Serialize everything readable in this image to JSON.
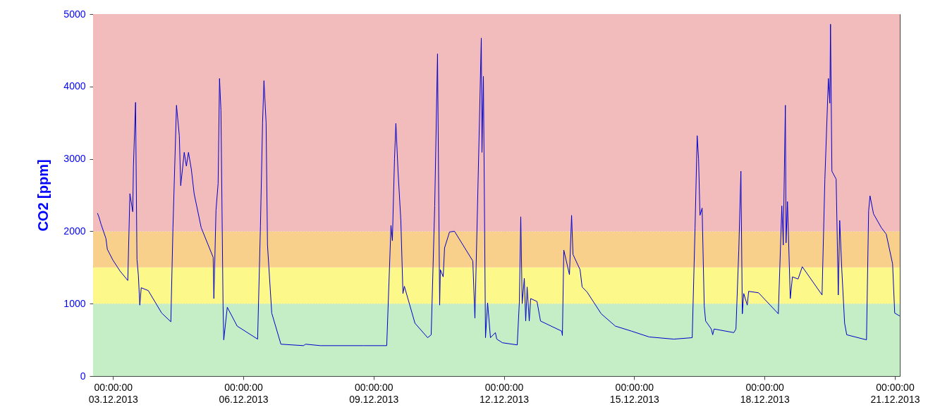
{
  "chart_data": {
    "type": "line",
    "ylabel": "CO2 [ppm]",
    "x": [
      "2013-12-02T15:25",
      "2013-12-02T16:12",
      "2013-12-02T17:22",
      "2013-12-02T20:06",
      "2013-12-02T20:53",
      "2013-12-03T00:00",
      "2013-12-03T03:54",
      "2013-12-03T08:11",
      "2013-12-03T09:21",
      "2013-12-03T10:55",
      "2013-12-03T11:18",
      "2013-12-03T12:28",
      "2013-12-03T13:15",
      "2013-12-03T14:02",
      "2013-12-03T14:49",
      "2013-12-03T15:36",
      "2013-12-03T19:30",
      "2013-12-04T02:54",
      "2013-12-04T07:58",
      "2013-12-04T09:08",
      "2013-12-04T11:05",
      "2013-12-04T12:39",
      "2013-12-04T13:25",
      "2013-12-04T15:22",
      "2013-12-04T16:33",
      "2013-12-04T17:43",
      "2013-12-04T19:16",
      "2013-12-04T20:50",
      "2013-12-05T00:44",
      "2013-12-05T07:21",
      "2013-12-05T07:45",
      "2013-12-05T08:55",
      "2013-12-05T10:05",
      "2013-12-05T10:52",
      "2013-12-05T11:39",
      "2013-12-05T12:49",
      "2013-12-05T13:12",
      "2013-12-05T15:09",
      "2013-12-05T20:37",
      "2013-12-06T07:55",
      "2013-12-06T09:29",
      "2013-12-06T10:39",
      "2013-12-06T11:25",
      "2013-12-06T12:36",
      "2013-12-06T13:22",
      "2013-12-06T15:43",
      "2013-12-06T20:47",
      "2013-12-07T09:15",
      "2013-12-07T10:25",
      "2013-12-07T18:37",
      "2013-12-08T18:23",
      "2013-12-09T07:15",
      "2013-12-09T09:36",
      "2013-12-09T10:22",
      "2013-12-09T11:33",
      "2013-12-09T12:19",
      "2013-12-09T13:30",
      "2013-12-09T15:03",
      "2013-12-09T16:13",
      "2013-12-09T17:00",
      "2013-12-09T22:51",
      "2013-12-10T05:52",
      "2013-12-10T07:49",
      "2013-12-10T09:46",
      "2013-12-10T11:19",
      "2013-12-10T12:30",
      "2013-12-10T12:53",
      "2013-12-10T14:27",
      "2013-12-10T15:13",
      "2013-12-10T17:57",
      "2013-12-10T20:41",
      "2013-12-11T06:49",
      "2013-12-11T07:59",
      "2013-12-11T09:33",
      "2013-12-11T11:30",
      "2013-12-11T11:53",
      "2013-12-11T12:40",
      "2013-12-11T13:50",
      "2013-12-11T15:00",
      "2013-12-11T16:34",
      "2013-12-11T19:17",
      "2013-12-11T20:04",
      "2013-12-11T23:11",
      "2013-12-12T07:22",
      "2013-12-12T08:33",
      "2013-12-12T09:19",
      "2013-12-12T10:06",
      "2013-12-12T11:16",
      "2013-12-12T12:03",
      "2013-12-12T12:50",
      "2013-12-12T14:00",
      "2013-12-12T14:47",
      "2013-12-12T18:17",
      "2013-12-12T20:14",
      "2013-12-13T07:56",
      "2013-12-13T08:19",
      "2013-12-13T09:06",
      "2013-12-13T12:13",
      "2013-12-13T13:24",
      "2013-12-13T14:10",
      "2013-12-13T18:04",
      "2013-12-13T19:14",
      "2013-12-13T21:58",
      "2013-12-14T05:46",
      "2013-12-14T13:34",
      "2013-12-14T22:32",
      "2013-12-15T08:16",
      "2013-12-15T21:55",
      "2013-12-16T08:03",
      "2013-12-16T09:37",
      "2013-12-16T10:47",
      "2013-12-16T11:34",
      "2013-12-16T12:20",
      "2013-12-16T13:31",
      "2013-12-16T14:41",
      "2013-12-16T15:28",
      "2013-12-16T18:35",
      "2013-12-16T19:22",
      "2013-12-16T20:08",
      "2013-12-17T07:03",
      "2013-12-17T08:13",
      "2013-12-17T09:47",
      "2013-12-17T10:57",
      "2013-12-17T11:44",
      "2013-12-17T12:31",
      "2013-12-17T14:28",
      "2013-12-17T15:14",
      "2013-12-17T20:42",
      "2013-12-18T07:37",
      "2013-12-18T09:34",
      "2013-12-18T10:21",
      "2013-12-18T11:31",
      "2013-12-18T11:54",
      "2013-12-18T12:41",
      "2013-12-18T14:14",
      "2013-12-18T15:25",
      "2013-12-18T18:32",
      "2013-12-18T20:52",
      "2013-12-19T07:47",
      "2013-12-19T09:21",
      "2013-12-19T11:17",
      "2013-12-19T12:04",
      "2013-12-19T12:28",
      "2013-12-19T13:14",
      "2013-12-19T15:35",
      "2013-12-19T16:45",
      "2013-12-19T17:32",
      "2013-12-19T18:42",
      "2013-12-19T20:15",
      "2013-12-19T21:26",
      "2013-12-20T08:21",
      "2013-12-20T09:31",
      "2013-12-20T10:17",
      "2013-12-20T12:14",
      "2013-12-20T16:32",
      "2013-12-20T19:15",
      "2013-12-20T22:46",
      "2013-12-20T23:56",
      "2013-12-21T02:40"
    ],
    "series": [
      {
        "color": "#0000cc",
        "values": [
          2250,
          2200,
          2100,
          1900,
          1750,
          1600,
          1450,
          1320,
          2520,
          2270,
          2900,
          3780,
          1610,
          1390,
          980,
          1220,
          1180,
          870,
          750,
          2050,
          3740,
          3320,
          2630,
          3090,
          2900,
          3090,
          2860,
          2520,
          2050,
          1640,
          1070,
          2290,
          2660,
          4110,
          3670,
          970,
          500,
          950,
          690,
          510,
          2080,
          3500,
          4080,
          3500,
          1810,
          870,
          440,
          420,
          440,
          420,
          420,
          420,
          2080,
          1870,
          3000,
          3490,
          2830,
          2150,
          1140,
          1240,
          730,
          530,
          570,
          2350,
          4450,
          980,
          1470,
          1370,
          1770,
          1990,
          2000,
          1590,
          800,
          2490,
          4670,
          3090,
          4140,
          530,
          1010,
          530,
          600,
          510,
          460,
          430,
          1030,
          2200,
          1000,
          1350,
          760,
          1230,
          760,
          1070,
          1030,
          760,
          620,
          560,
          1740,
          1400,
          2220,
          1680,
          1470,
          1230,
          1160,
          860,
          690,
          620,
          540,
          510,
          530,
          2050,
          3320,
          3000,
          2220,
          2320,
          970,
          760,
          650,
          570,
          650,
          600,
          650,
          1740,
          2830,
          860,
          1140,
          980,
          1170,
          1150,
          860,
          2350,
          1810,
          3740,
          1840,
          2410,
          1070,
          1370,
          1340,
          1510,
          1120,
          2720,
          4110,
          3770,
          4860,
          2830,
          2720,
          1120,
          2150,
          1470,
          730,
          570,
          500,
          2280,
          2490,
          2240,
          2050,
          1960,
          1550,
          870,
          830
        ]
      }
    ],
    "xlim": [
      "2013-12-02T13:00",
      "2013-12-21T02:45"
    ],
    "xticks": [
      {
        "value": "2013-12-03T00:00",
        "label": "00:00:00\n03.12.2013"
      },
      {
        "value": "2013-12-06T00:00",
        "label": "00:00:00\n06.12.2013"
      },
      {
        "value": "2013-12-09T00:00",
        "label": "00:00:00\n09.12.2013"
      },
      {
        "value": "2013-12-12T00:00",
        "label": "00:00:00\n12.12.2013"
      },
      {
        "value": "2013-12-15T00:00",
        "label": "00:00:00\n15.12.2013"
      },
      {
        "value": "2013-12-18T00:00",
        "label": "00:00:00\n18.12.2013"
      },
      {
        "value": "2013-12-21T00:00",
        "label": "00:00:00\n21.12.2013"
      }
    ],
    "ylim": [
      0,
      5000
    ],
    "yticks": [
      0,
      1000,
      2000,
      3000,
      4000,
      5000
    ],
    "bands": [
      {
        "axis": "y",
        "from": 0,
        "to": 1000,
        "color": "#c6eec6"
      },
      {
        "axis": "y",
        "from": 1000,
        "to": 1500,
        "color": "#fdf88a"
      },
      {
        "axis": "y",
        "from": 1500,
        "to": 2000,
        "color": "#f9cf8c"
      },
      {
        "axis": "y",
        "from": 2000,
        "to": 5000,
        "color": "#f3bcbc"
      }
    ],
    "grid": true,
    "line_style": "solid",
    "marker": "none"
  }
}
